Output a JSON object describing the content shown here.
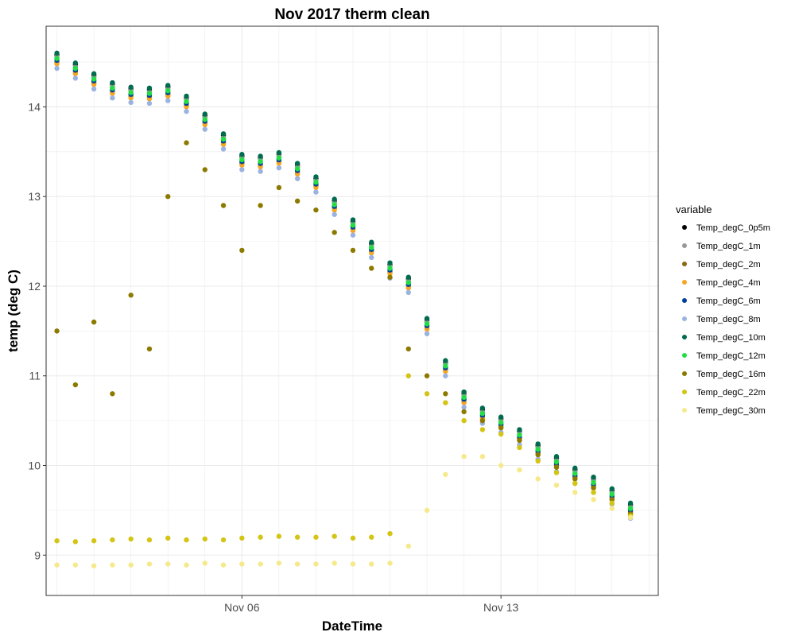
{
  "chart_data": {
    "type": "scatter",
    "title": "Nov 2017 therm clean",
    "xlabel": "DateTime",
    "ylabel": "temp (deg C)",
    "xlim": [
      "2017-10-31T17:00",
      "2017-11-17T06:00"
    ],
    "ylim": [
      8.55,
      14.9
    ],
    "x_ticks": [
      "Nov 06",
      "Nov 13"
    ],
    "y_ticks": [
      "9",
      "10",
      "11",
      "12",
      "13",
      "14"
    ],
    "grid": true,
    "legend": {
      "title": "variable",
      "position": "right"
    },
    "x_dates": [
      "2017-11-01",
      "2017-11-01T12:00",
      "2017-11-02",
      "2017-11-02T12:00",
      "2017-11-03",
      "2017-11-03T12:00",
      "2017-11-04",
      "2017-11-04T12:00",
      "2017-11-05",
      "2017-11-05T12:00",
      "2017-11-06",
      "2017-11-06T12:00",
      "2017-11-07",
      "2017-11-07T12:00",
      "2017-11-08",
      "2017-11-08T12:00",
      "2017-11-09",
      "2017-11-09T12:00",
      "2017-11-10",
      "2017-11-10T12:00",
      "2017-11-11",
      "2017-11-11T12:00",
      "2017-11-12",
      "2017-11-12T12:00",
      "2017-11-13",
      "2017-11-13T12:00",
      "2017-11-14",
      "2017-11-14T12:00",
      "2017-11-15",
      "2017-11-15T12:00",
      "2017-11-16",
      "2017-11-16T12:00"
    ],
    "series": [
      {
        "name": "Temp_degC_0p5m",
        "color": "#000000",
        "values": [
          14.58,
          14.47,
          14.35,
          14.25,
          14.2,
          14.19,
          14.22,
          14.1,
          13.9,
          13.68,
          13.45,
          13.43,
          13.47,
          13.35,
          13.2,
          12.95,
          12.72,
          12.47,
          12.24,
          12.08,
          11.62,
          11.15,
          10.8,
          10.62,
          10.52,
          10.38,
          10.22,
          10.08,
          9.95,
          9.85,
          9.72,
          9.56
        ]
      },
      {
        "name": "Temp_degC_1m",
        "color": "#999999",
        "values": [
          14.56,
          14.45,
          14.33,
          14.23,
          14.18,
          14.17,
          14.2,
          14.08,
          13.88,
          13.66,
          13.43,
          13.41,
          13.45,
          13.33,
          13.18,
          12.93,
          12.7,
          12.45,
          12.22,
          12.06,
          11.6,
          11.13,
          10.78,
          10.6,
          10.5,
          10.36,
          10.2,
          10.06,
          9.93,
          9.83,
          9.7,
          9.54
        ]
      },
      {
        "name": "Temp_degC_2m",
        "color": "#8B6914",
        "values": [
          14.5,
          14.39,
          14.27,
          14.17,
          14.12,
          14.11,
          14.14,
          14.02,
          13.82,
          13.6,
          13.37,
          13.35,
          13.39,
          13.27,
          13.12,
          12.87,
          12.64,
          12.39,
          12.16,
          12.0,
          11.54,
          11.07,
          10.72,
          10.54,
          10.44,
          10.3,
          10.14,
          10.0,
          9.87,
          9.77,
          9.64,
          9.48
        ]
      },
      {
        "name": "Temp_degC_4m",
        "color": "#F5A623",
        "values": [
          14.48,
          14.37,
          14.25,
          14.15,
          14.1,
          14.09,
          14.12,
          14.0,
          13.8,
          13.58,
          13.35,
          13.33,
          13.37,
          13.25,
          13.1,
          12.85,
          12.62,
          12.37,
          12.14,
          11.98,
          11.52,
          11.05,
          10.7,
          10.52,
          10.42,
          10.28,
          10.12,
          9.98,
          9.85,
          9.75,
          9.62,
          9.46
        ]
      },
      {
        "name": "Temp_degC_6m",
        "color": "#003F9C",
        "values": [
          14.52,
          14.41,
          14.29,
          14.19,
          14.14,
          14.13,
          14.16,
          14.04,
          13.84,
          13.62,
          13.39,
          13.37,
          13.41,
          13.29,
          13.14,
          12.89,
          12.66,
          12.41,
          12.18,
          12.02,
          11.56,
          11.09,
          10.74,
          10.56,
          10.46,
          10.32,
          10.16,
          10.02,
          9.89,
          9.79,
          9.66,
          9.5
        ]
      },
      {
        "name": "Temp_degC_8m",
        "color": "#9BB3E0",
        "values": [
          14.43,
          14.32,
          14.2,
          14.1,
          14.05,
          14.04,
          14.07,
          13.95,
          13.75,
          13.53,
          13.3,
          13.28,
          13.32,
          13.2,
          13.05,
          12.8,
          12.57,
          12.32,
          12.09,
          11.93,
          11.47,
          11.0,
          10.65,
          10.47,
          10.37,
          10.23,
          10.07,
          9.93,
          9.8,
          9.7,
          9.57,
          9.41
        ]
      },
      {
        "name": "Temp_degC_10m",
        "color": "#006B4E",
        "values": [
          14.6,
          14.49,
          14.37,
          14.27,
          14.22,
          14.21,
          14.24,
          14.12,
          13.92,
          13.7,
          13.47,
          13.45,
          13.49,
          13.37,
          13.22,
          12.97,
          12.74,
          12.49,
          12.26,
          12.1,
          11.64,
          11.17,
          10.82,
          10.64,
          10.54,
          10.4,
          10.24,
          10.1,
          9.97,
          9.87,
          9.74,
          9.58
        ]
      },
      {
        "name": "Temp_degC_12m",
        "color": "#22DD44",
        "values": [
          14.54,
          14.43,
          14.31,
          14.21,
          14.16,
          14.15,
          14.18,
          14.06,
          13.86,
          13.64,
          13.41,
          13.39,
          13.43,
          13.31,
          13.16,
          12.91,
          12.68,
          12.43,
          12.2,
          12.04,
          11.58,
          11.11,
          10.76,
          10.58,
          10.48,
          10.34,
          10.18,
          10.04,
          9.91,
          9.81,
          9.68,
          9.52
        ]
      },
      {
        "name": "Temp_degC_16m",
        "color": "#8C7A00",
        "values": [
          11.5,
          10.9,
          11.6,
          10.8,
          11.9,
          11.3,
          13.0,
          13.6,
          13.3,
          12.9,
          12.4,
          12.9,
          13.1,
          12.95,
          12.85,
          12.6,
          12.4,
          12.2,
          12.1,
          11.3,
          11.0,
          10.8,
          10.6,
          10.5,
          10.42,
          10.28,
          10.12,
          9.98,
          9.85,
          9.75,
          9.62,
          9.46
        ]
      },
      {
        "name": "Temp_degC_22m",
        "color": "#D4C414",
        "values": [
          9.16,
          9.15,
          9.16,
          9.17,
          9.18,
          9.17,
          9.19,
          9.17,
          9.18,
          9.17,
          9.19,
          9.2,
          9.21,
          9.2,
          9.2,
          9.21,
          9.19,
          9.2,
          9.24,
          11.0,
          10.8,
          10.7,
          10.5,
          10.4,
          10.35,
          10.2,
          10.05,
          9.92,
          9.8,
          9.7,
          9.58,
          9.44
        ]
      },
      {
        "name": "Temp_degC_30m",
        "color": "#F5E98A",
        "values": [
          8.89,
          8.89,
          8.88,
          8.89,
          8.89,
          8.9,
          8.9,
          8.89,
          8.91,
          8.89,
          8.9,
          8.9,
          8.91,
          8.9,
          8.9,
          8.91,
          8.9,
          8.9,
          8.91,
          9.1,
          9.5,
          9.9,
          10.1,
          10.1,
          10.0,
          9.95,
          9.85,
          9.78,
          9.7,
          9.62,
          9.52,
          9.42
        ]
      }
    ]
  }
}
